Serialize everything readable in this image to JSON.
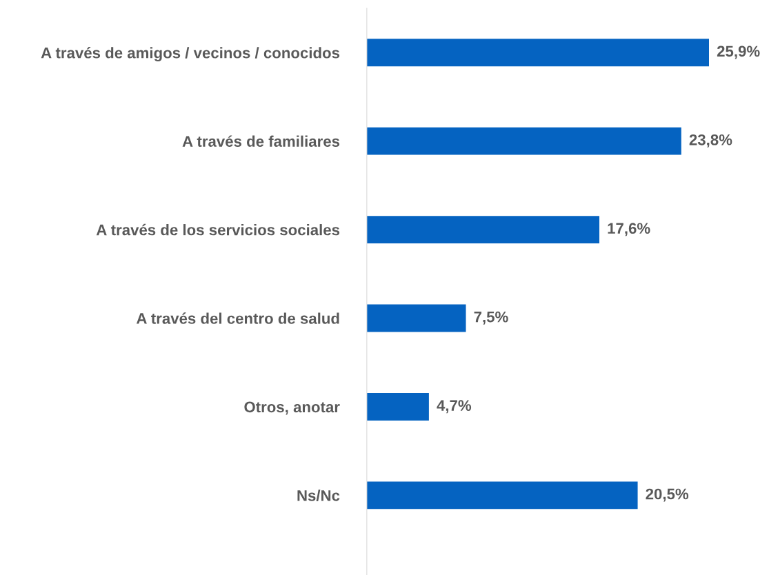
{
  "chart_data": {
    "type": "bar",
    "orientation": "horizontal",
    "categories": [
      "A través de amigos / vecinos / conocidos",
      "A través de familiares",
      "A través de los servicios sociales",
      "A través del centro de salud",
      "Otros, anotar",
      "Ns/Nc"
    ],
    "values": [
      25.9,
      23.8,
      17.6,
      7.5,
      4.7,
      20.5
    ],
    "value_labels": [
      "25,9%",
      "23,8%",
      "17,6%",
      "7,5%",
      "4,7%",
      "20,5%"
    ],
    "color": "#0563c1",
    "tick_labels": "y",
    "grid": false,
    "legend": false
  }
}
